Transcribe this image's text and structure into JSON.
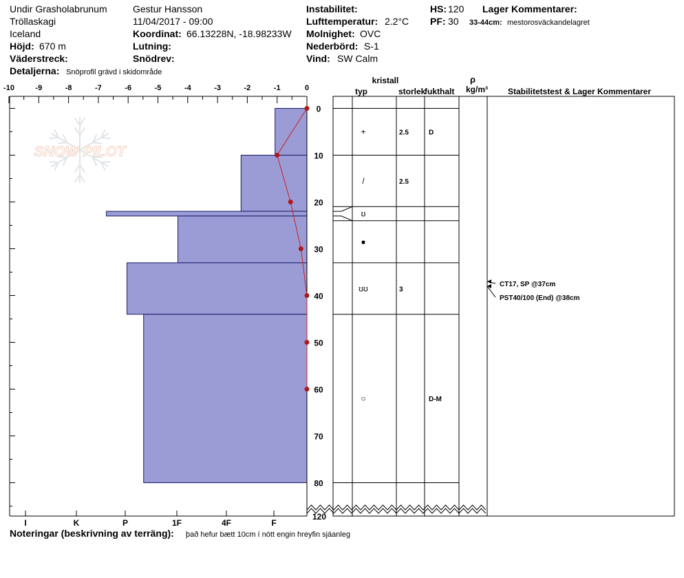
{
  "header": {
    "location": "Undir Grasholabrunum",
    "area": "Tröllaskagi",
    "country": "Iceland",
    "elevation_label": "Höjd:",
    "elevation": "670 m",
    "aspect_label": "Väderstreck:",
    "details_label": "Detaljerna:",
    "details": "Snöprofil grävd i skidområde",
    "observer": "Gestur Hansson",
    "datetime": "11/04/2017 - 09:00",
    "coord_label": "Koordinat:",
    "coord": "66.13228N, -18.98233W",
    "slope_label": "Lutning:",
    "wind_loading_label": "Snödrev:",
    "instability_label": "Instabilitet:",
    "air_temp_label": "Lufttemperatur:",
    "air_temp": "2.2°C",
    "sky_label": "Molnighet:",
    "sky": "OVC",
    "precip_label": "Nederbörd:",
    "precip": "S-1",
    "wind_label": "Vind:",
    "wind": "SW Calm",
    "hs_label": "HS:",
    "hs": "120",
    "pf_label": "PF:",
    "pf": "30",
    "layer_comments_label": "Lager Kommentarer:",
    "layer_comment_range": "33-44cm:",
    "layer_comment_text": "mestorosväckandelagret"
  },
  "table": {
    "crystal_label": "kristall",
    "type_label": "typ",
    "size_label": "storlek",
    "moisture_label": "fukthalt",
    "rho_label": "ρ",
    "density_unit": "kg/m³",
    "stability_label": "Stabilitetstest & Lager Kommentarer"
  },
  "footer": {
    "notes_label": "Noteringar (beskrivning av terräng):",
    "notes": "það hefur bætt 10cm í nótt engin hreyfin sjáanleg"
  },
  "watermark": "SNOW PILOT",
  "colors": {
    "hardness_fill": "#9b9bd6",
    "temp_line": "#cc1f1f",
    "temp_marker": "#b01818"
  },
  "chart_data": {
    "type": "snow_profile",
    "temp_axis": {
      "ticks": [
        "-10",
        "-9",
        "-8",
        "-7",
        "-6",
        "-5",
        "-4",
        "-3",
        "-2",
        "-1",
        "0"
      ],
      "range": [
        -10,
        0
      ]
    },
    "depth_axis": {
      "ticks": [
        "0",
        "10",
        "20",
        "30",
        "40",
        "50",
        "60",
        "70",
        "80"
      ],
      "break_label": "120",
      "range": [
        0,
        80
      ]
    },
    "hardness_axis": {
      "labels": [
        "I",
        "K",
        "P",
        "1F",
        "4F",
        "F"
      ]
    },
    "hardness_layers": [
      {
        "top": 0,
        "bottom": 10,
        "temp_equiv": -1.07
      },
      {
        "top": 10,
        "bottom": 22,
        "temp_equiv": -2.21
      },
      {
        "top": 22,
        "bottom": 23,
        "temp_equiv": -6.73
      },
      {
        "top": 23,
        "bottom": 33,
        "temp_equiv": -4.33
      },
      {
        "top": 33,
        "bottom": 44,
        "temp_equiv": -6.04
      },
      {
        "top": 44,
        "bottom": 80,
        "temp_equiv": -5.48
      }
    ],
    "temperature_profile": [
      {
        "depth": 0,
        "temp": 0
      },
      {
        "depth": 10,
        "temp": -1.0
      },
      {
        "depth": 20,
        "temp": -0.55
      },
      {
        "depth": 30,
        "temp": -0.2
      },
      {
        "depth": 40,
        "temp": 0
      },
      {
        "depth": 50,
        "temp": 0
      },
      {
        "depth": 60,
        "temp": 0
      }
    ],
    "grain_rows": [
      {
        "depth": 5,
        "type_symbol": "+",
        "size": "2.5",
        "moisture": "D"
      },
      {
        "depth": 15.5,
        "type_symbol": "/",
        "size": "2.5",
        "moisture": ""
      },
      {
        "depth": 22.5,
        "type_symbol": "ʊ",
        "size": "",
        "moisture": ""
      },
      {
        "depth": 28.5,
        "type_symbol": "●",
        "size": "",
        "moisture": ""
      },
      {
        "depth": 38.5,
        "type_symbol": "ʊʊ",
        "size": "3",
        "moisture": ""
      },
      {
        "depth": 62,
        "type_symbol": "○",
        "size": "",
        "moisture": "D-M"
      }
    ],
    "table_boundaries": [
      0,
      10,
      21,
      24,
      33,
      44,
      80
    ],
    "stability_tests": [
      {
        "depth": 37,
        "label": "CT17, SP @37cm"
      },
      {
        "depth": 38,
        "label": "PST40/100 (End) @38cm"
      }
    ]
  }
}
